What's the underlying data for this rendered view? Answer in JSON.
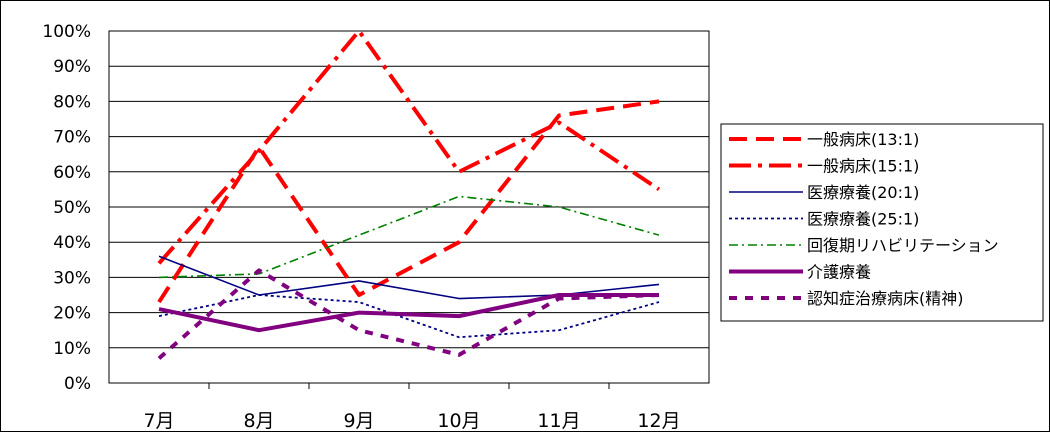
{
  "chart_data": {
    "type": "line",
    "title": "",
    "xlabel": "",
    "ylabel": "",
    "categories": [
      "7月",
      "8月",
      "9月",
      "10月",
      "11月",
      "12月"
    ],
    "yticks": [
      "0%",
      "10%",
      "20%",
      "30%",
      "40%",
      "50%",
      "60%",
      "70%",
      "80%",
      "90%",
      "100%"
    ],
    "ylim": [
      0,
      100
    ],
    "grid": "horizontal",
    "legend_position": "right",
    "series": [
      {
        "name": "一般病床(13:1)",
        "values": [
          23,
          67,
          25,
          40,
          76,
          80
        ],
        "color": "#ff0000",
        "style": "dash"
      },
      {
        "name": "一般病床(15:1)",
        "values": [
          34,
          66,
          100,
          60,
          74,
          55
        ],
        "color": "#ff0000",
        "style": "dashdot"
      },
      {
        "name": "医療療養(20:1)",
        "values": [
          36,
          25,
          29,
          24,
          25,
          28
        ],
        "color": "#000080",
        "style": "solid"
      },
      {
        "name": "医療療養(25:1)",
        "values": [
          19,
          25,
          23,
          13,
          15,
          23
        ],
        "color": "#000080",
        "style": "dot"
      },
      {
        "name": "回復期リハビリテーション",
        "values": [
          30,
          31,
          42,
          53,
          50,
          42
        ],
        "color": "#008000",
        "style": "dashdot-thin"
      },
      {
        "name": "介護療養",
        "values": [
          21,
          15,
          20,
          19,
          25,
          25
        ],
        "color": "#800080",
        "style": "solid-thick"
      },
      {
        "name": "認知症治療病床(精神)",
        "values": [
          7,
          32,
          15,
          8,
          24,
          25
        ],
        "color": "#800080",
        "style": "dash-thick"
      }
    ]
  }
}
